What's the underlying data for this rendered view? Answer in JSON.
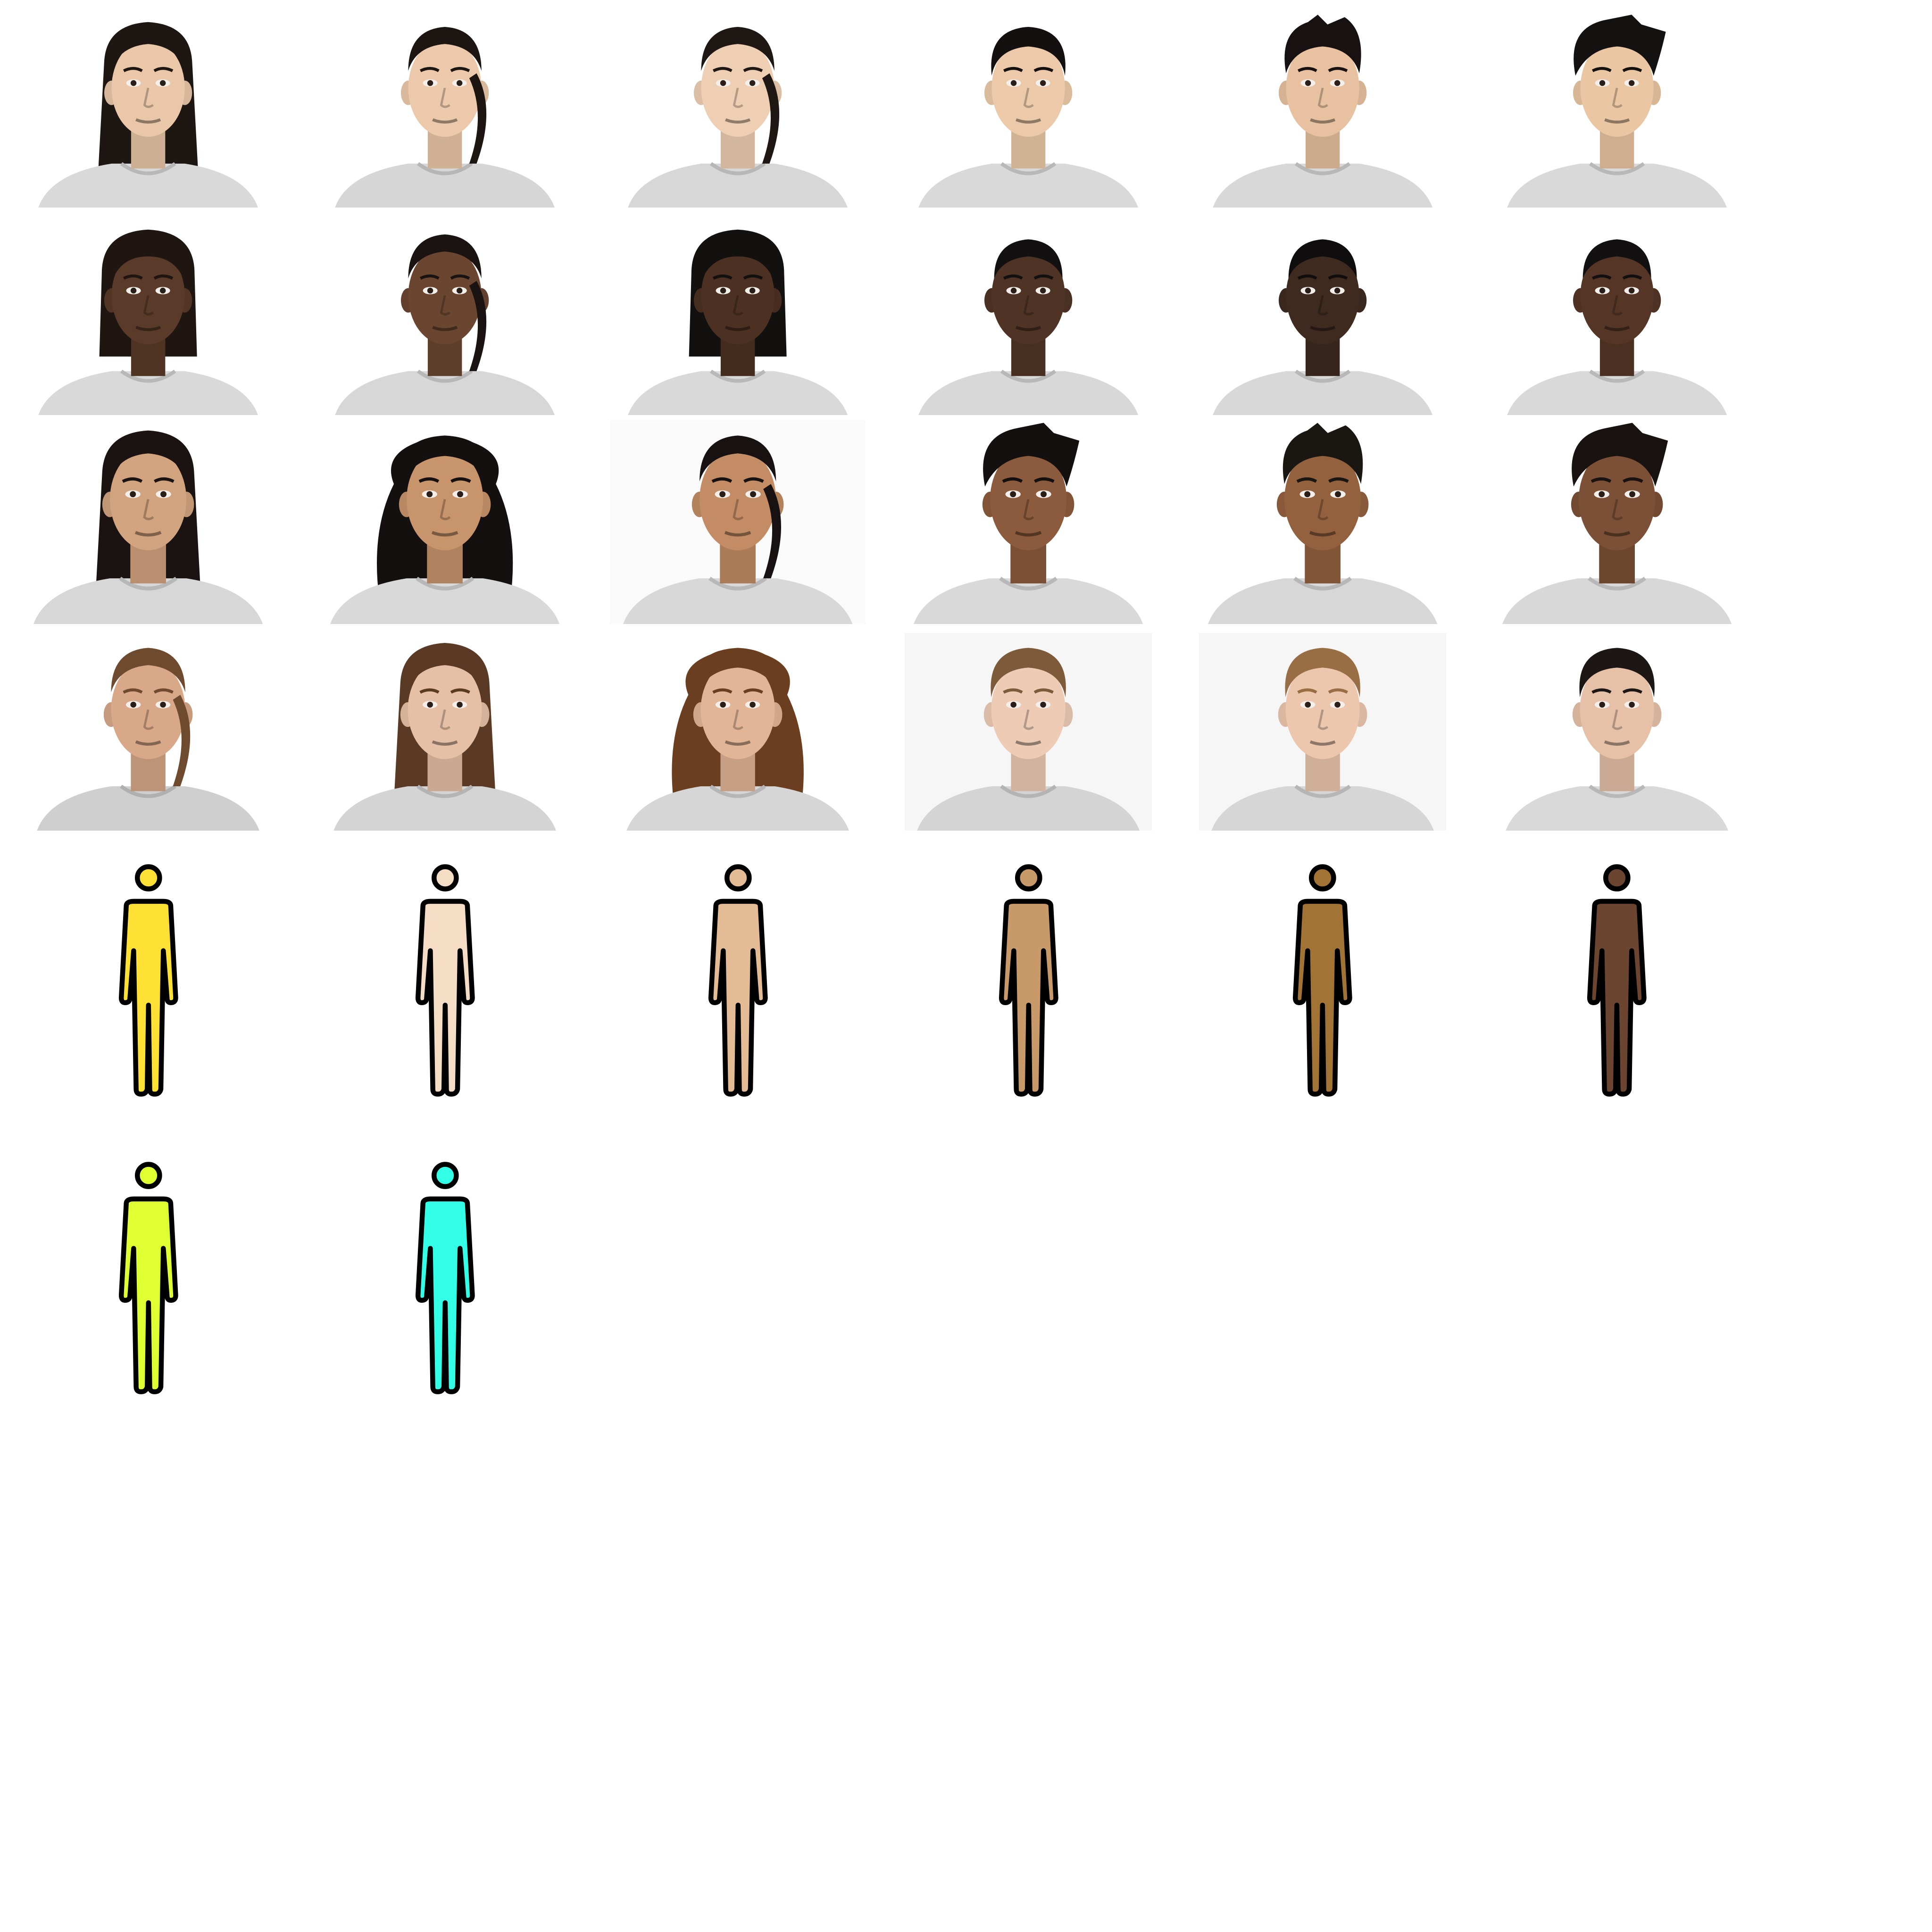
{
  "portraits": [
    {
      "skin": "#e9c7a8",
      "hair": "#1d1612",
      "style": "long",
      "shirt": "#d9d9d9",
      "bg": "#ffffff"
    },
    {
      "skin": "#ecc9aa",
      "hair": "#1c1511",
      "style": "tied",
      "shirt": "#d6d6d6",
      "bg": "#ffffff"
    },
    {
      "skin": "#efcfb3",
      "hair": "#1e1713",
      "style": "tied",
      "shirt": "#d7d7d7",
      "bg": "#ffffff"
    },
    {
      "skin": "#eccaa9",
      "hair": "#141010",
      "style": "short",
      "shirt": "#d9d9d9",
      "bg": "#ffffff"
    },
    {
      "skin": "#e8c2a0",
      "hair": "#171211",
      "style": "spiky",
      "shirt": "#d8d8d8",
      "bg": "#ffffff"
    },
    {
      "skin": "#eac6a3",
      "hair": "#141111",
      "style": "messy",
      "shirt": "#d9d9d9",
      "bg": "#ffffff"
    },
    {
      "skin": "#5a3a28",
      "hair": "#1f1612",
      "style": "bob",
      "shirt": "#d9d9d9",
      "bg": "#ffffff"
    },
    {
      "skin": "#6a4631",
      "hair": "#1a1311",
      "style": "tied",
      "shirt": "#d7d7d7",
      "bg": "#ffffff"
    },
    {
      "skin": "#4c3122",
      "hair": "#131010",
      "style": "bob",
      "shirt": "#d9d9d9",
      "bg": "#ffffff"
    },
    {
      "skin": "#4f3425",
      "hair": "#121010",
      "style": "buzz",
      "shirt": "#d8d8d8",
      "bg": "#ffffff"
    },
    {
      "skin": "#3f2a1f",
      "hair": "#0f0d0d",
      "style": "buzz",
      "shirt": "#d8d8d8",
      "bg": "#ffffff"
    },
    {
      "skin": "#553626",
      "hair": "#121010",
      "style": "buzz",
      "shirt": "#d9d9d9",
      "bg": "#ffffff"
    },
    {
      "skin": "#d2a37f",
      "hair": "#1a1311",
      "style": "long",
      "shirt": "#d7d7d7",
      "bg": "#ffffff"
    },
    {
      "skin": "#c8946c",
      "hair": "#151010",
      "style": "curly",
      "shirt": "#d9d9d9",
      "bg": "#ffffff"
    },
    {
      "skin": "#c38c64",
      "hair": "#171211",
      "style": "tied",
      "shirt": "#d8d8d8",
      "bg": "#fafafa"
    },
    {
      "skin": "#8c5a3c",
      "hair": "#141010",
      "style": "messy",
      "shirt": "#d9d9d9",
      "bg": "#ffffff"
    },
    {
      "skin": "#94613f",
      "hair": "#1a1612",
      "style": "spiky",
      "shirt": "#d7d7d7",
      "bg": "#ffffff"
    },
    {
      "skin": "#7c5036",
      "hair": "#181311",
      "style": "messy",
      "shirt": "#d8d8d8",
      "bg": "#ffffff"
    },
    {
      "skin": "#d8a888",
      "hair": "#6e4a2e",
      "style": "tied",
      "shirt": "#cfcfcf",
      "bg": "#ffffff"
    },
    {
      "skin": "#e6c0a6",
      "hair": "#5a3a24",
      "style": "long",
      "shirt": "#d4d4d4",
      "bg": "#ffffff"
    },
    {
      "skin": "#e2b596",
      "hair": "#6a3e1e",
      "style": "curly",
      "shirt": "#d6d6d6",
      "bg": "#ffffff"
    },
    {
      "skin": "#edcbb5",
      "hair": "#7c5a3a",
      "style": "short",
      "shirt": "#d4d4d4",
      "bg": "#f6f6f6"
    },
    {
      "skin": "#ecc7ae",
      "hair": "#9a6e44",
      "style": "short",
      "shirt": "#d6d6d6",
      "bg": "#f6f6f6"
    },
    {
      "skin": "#e6c1a8",
      "hair": "#1c1614",
      "style": "short",
      "shirt": "#d9d9d9",
      "bg": "#ffffff"
    }
  ],
  "figures": [
    {
      "fill": "#ffe135"
    },
    {
      "fill": "#f5dcc4"
    },
    {
      "fill": "#e3bb94"
    },
    {
      "fill": "#c89a6a"
    },
    {
      "fill": "#a17436"
    },
    {
      "fill": "#6b4530"
    },
    {
      "fill": "#e0ff33"
    },
    {
      "fill": "#33ffe6"
    }
  ]
}
